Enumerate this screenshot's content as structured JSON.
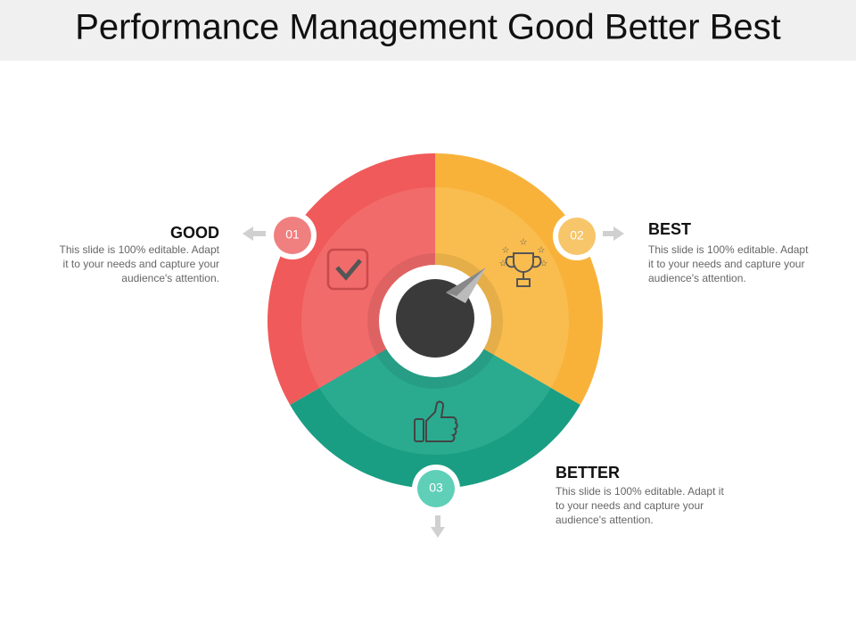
{
  "header": {
    "title": "Performance Management Good Better Best"
  },
  "sections": [
    {
      "number": "01",
      "heading": "GOOD",
      "body": [
        "This slide is 100% editable. Adapt",
        "it to your needs and capture your",
        "audience's attention."
      ]
    },
    {
      "number": "02",
      "heading": "BEST",
      "body": [
        "This slide is 100% editable. Adapt",
        "it to your needs and capture your",
        "audience's attention."
      ]
    },
    {
      "number": "03",
      "heading": "BETTER",
      "body": [
        "This slide is 100% editable. Adapt it",
        "to your needs and capture your",
        "audience's attention."
      ]
    }
  ]
}
